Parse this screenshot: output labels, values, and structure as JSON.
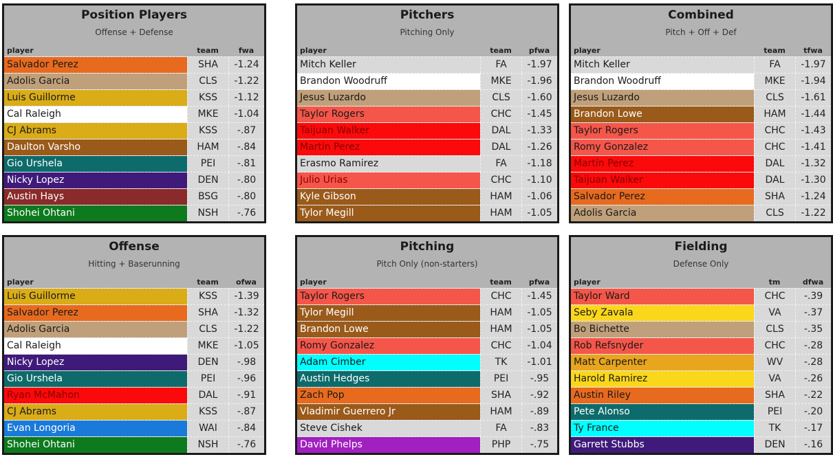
{
  "panels": [
    {
      "title": "Position Players",
      "subtitle": "Offense + Defense",
      "col_player": "player",
      "col_team": "team",
      "col_stat": "fwa",
      "rows": [
        {
          "player": "Salvador Perez",
          "team": "SHA",
          "value": "-1.24",
          "bg": "#e86a1e",
          "fg": "#1a1a1a"
        },
        {
          "player": "Adolis Garcia",
          "team": "CLS",
          "value": "-1.22",
          "bg": "#c0a07a",
          "fg": "#1a1a1a"
        },
        {
          "player": "Luis Guillorme",
          "team": "KSS",
          "value": "-1.12",
          "bg": "#d9ac18",
          "fg": "#1a1a1a"
        },
        {
          "player": "Cal Raleigh",
          "team": "MKE",
          "value": "-1.04",
          "bg": "#ffffff",
          "fg": "#1a1a1a"
        },
        {
          "player": "CJ Abrams",
          "team": "KSS",
          "value": "-.87",
          "bg": "#d9ac18",
          "fg": "#1a1a1a"
        },
        {
          "player": "Daulton Varsho",
          "team": "HAM",
          "value": "-.84",
          "bg": "#9a5a1a",
          "fg": "#ffffff"
        },
        {
          "player": "Gio Urshela",
          "team": "PEI",
          "value": "-.81",
          "bg": "#0e6b6b",
          "fg": "#ffffff"
        },
        {
          "player": "Nicky Lopez",
          "team": "DEN",
          "value": "-.80",
          "bg": "#3f1a7a",
          "fg": "#ffffff"
        },
        {
          "player": "Austin Hays",
          "team": "BSG",
          "value": "-.80",
          "bg": "#8a2a2a",
          "fg": "#ffffff"
        },
        {
          "player": "Shohei Ohtani",
          "team": "NSH",
          "value": "-.76",
          "bg": "#0d7a1e",
          "fg": "#ffffff"
        }
      ]
    },
    {
      "title": "Pitchers",
      "subtitle": "Pitching Only",
      "col_player": "player",
      "col_team": "team",
      "col_stat": "pfwa",
      "rows": [
        {
          "player": "Mitch Keller",
          "team": "FA",
          "value": "-1.97",
          "bg": "#d9d9d9",
          "fg": "#1a1a1a"
        },
        {
          "player": "Brandon Woodruff",
          "team": "MKE",
          "value": "-1.96",
          "bg": "#ffffff",
          "fg": "#1a1a1a"
        },
        {
          "player": "Jesus Luzardo",
          "team": "CLS",
          "value": "-1.60",
          "bg": "#c0a07a",
          "fg": "#1a1a1a"
        },
        {
          "player": "Taylor Rogers",
          "team": "CHC",
          "value": "-1.45",
          "bg": "#f5564a",
          "fg": "#1a1a1a"
        },
        {
          "player": "Taijuan Walker",
          "team": "DAL",
          "value": "-1.33",
          "bg": "#fa0a0a",
          "fg": "#8a0000"
        },
        {
          "player": "Martin Perez",
          "team": "DAL",
          "value": "-1.26",
          "bg": "#fa0a0a",
          "fg": "#8a0000"
        },
        {
          "player": "Erasmo Ramirez",
          "team": "FA",
          "value": "-1.18",
          "bg": "#d9d9d9",
          "fg": "#1a1a1a"
        },
        {
          "player": "Julio Urias",
          "team": "CHC",
          "value": "-1.10",
          "bg": "#f5564a",
          "fg": "#8a0000"
        },
        {
          "player": "Kyle Gibson",
          "team": "HAM",
          "value": "-1.06",
          "bg": "#9a5a1a",
          "fg": "#ffffff"
        },
        {
          "player": "Tylor Megill",
          "team": "HAM",
          "value": "-1.05",
          "bg": "#9a5a1a",
          "fg": "#ffffff"
        }
      ]
    },
    {
      "title": "Combined",
      "subtitle": "Pitch + Off + Def",
      "col_player": "player",
      "col_team": "team",
      "col_stat": "tfwa",
      "rows": [
        {
          "player": "Mitch Keller",
          "team": "FA",
          "value": "-1.97",
          "bg": "#d9d9d9",
          "fg": "#1a1a1a"
        },
        {
          "player": "Brandon Woodruff",
          "team": "MKE",
          "value": "-1.94",
          "bg": "#ffffff",
          "fg": "#1a1a1a"
        },
        {
          "player": "Jesus Luzardo",
          "team": "CLS",
          "value": "-1.61",
          "bg": "#c0a07a",
          "fg": "#1a1a1a"
        },
        {
          "player": "Brandon Lowe",
          "team": "HAM",
          "value": "-1.44",
          "bg": "#9a5a1a",
          "fg": "#ffffff"
        },
        {
          "player": "Taylor Rogers",
          "team": "CHC",
          "value": "-1.43",
          "bg": "#f5564a",
          "fg": "#1a1a1a"
        },
        {
          "player": "Romy Gonzalez",
          "team": "CHC",
          "value": "-1.41",
          "bg": "#f5564a",
          "fg": "#1a1a1a"
        },
        {
          "player": "Martin Perez",
          "team": "DAL",
          "value": "-1.32",
          "bg": "#fa0a0a",
          "fg": "#8a0000"
        },
        {
          "player": "Taijuan Walker",
          "team": "DAL",
          "value": "-1.30",
          "bg": "#fa0a0a",
          "fg": "#8a0000"
        },
        {
          "player": "Salvador Perez",
          "team": "SHA",
          "value": "-1.24",
          "bg": "#e86a1e",
          "fg": "#1a1a1a"
        },
        {
          "player": "Adolis Garcia",
          "team": "CLS",
          "value": "-1.22",
          "bg": "#c0a07a",
          "fg": "#1a1a1a"
        }
      ]
    },
    {
      "title": "Offense",
      "subtitle": "Hitting + Baserunning",
      "col_player": "player",
      "col_team": "team",
      "col_stat": "ofwa",
      "rows": [
        {
          "player": "Luis Guillorme",
          "team": "KSS",
          "value": "-1.39",
          "bg": "#d9ac18",
          "fg": "#1a1a1a"
        },
        {
          "player": "Salvador Perez",
          "team": "SHA",
          "value": "-1.32",
          "bg": "#e86a1e",
          "fg": "#1a1a1a"
        },
        {
          "player": "Adolis Garcia",
          "team": "CLS",
          "value": "-1.22",
          "bg": "#c0a07a",
          "fg": "#1a1a1a"
        },
        {
          "player": "Cal Raleigh",
          "team": "MKE",
          "value": "-1.05",
          "bg": "#ffffff",
          "fg": "#1a1a1a"
        },
        {
          "player": "Nicky Lopez",
          "team": "DEN",
          "value": "-.98",
          "bg": "#3f1a7a",
          "fg": "#ffffff"
        },
        {
          "player": "Gio Urshela",
          "team": "PEI",
          "value": "-.96",
          "bg": "#0e6b6b",
          "fg": "#ffffff"
        },
        {
          "player": "Ryan McMahon",
          "team": "DAL",
          "value": "-.91",
          "bg": "#fa0a0a",
          "fg": "#8a0000"
        },
        {
          "player": "CJ Abrams",
          "team": "KSS",
          "value": "-.87",
          "bg": "#d9ac18",
          "fg": "#1a1a1a"
        },
        {
          "player": "Evan Longoria",
          "team": "WAI",
          "value": "-.84",
          "bg": "#1a7ad9",
          "fg": "#ffffff"
        },
        {
          "player": "Shohei Ohtani",
          "team": "NSH",
          "value": "-.76",
          "bg": "#0d7a1e",
          "fg": "#ffffff"
        }
      ]
    },
    {
      "title": "Pitching",
      "subtitle": "Pitch Only (non-starters)",
      "col_player": "player",
      "col_team": "team",
      "col_stat": "pfwa",
      "rows": [
        {
          "player": "Taylor Rogers",
          "team": "CHC",
          "value": "-1.45",
          "bg": "#f5564a",
          "fg": "#1a1a1a"
        },
        {
          "player": "Tylor Megill",
          "team": "HAM",
          "value": "-1.05",
          "bg": "#9a5a1a",
          "fg": "#ffffff"
        },
        {
          "player": "Brandon Lowe",
          "team": "HAM",
          "value": "-1.05",
          "bg": "#9a5a1a",
          "fg": "#ffffff"
        },
        {
          "player": "Romy Gonzalez",
          "team": "CHC",
          "value": "-1.04",
          "bg": "#f5564a",
          "fg": "#1a1a1a"
        },
        {
          "player": "Adam Cimber",
          "team": "TK",
          "value": "-1.01",
          "bg": "#00ffff",
          "fg": "#1a1a1a"
        },
        {
          "player": "Austin Hedges",
          "team": "PEI",
          "value": "-.95",
          "bg": "#0e6b6b",
          "fg": "#ffffff"
        },
        {
          "player": "Zach Pop",
          "team": "SHA",
          "value": "-.92",
          "bg": "#e86a1e",
          "fg": "#1a1a1a"
        },
        {
          "player": "Vladimir Guerrero Jr",
          "team": "HAM",
          "value": "-.89",
          "bg": "#9a5a1a",
          "fg": "#ffffff"
        },
        {
          "player": "Steve Cishek",
          "team": "FA",
          "value": "-.83",
          "bg": "#d9d9d9",
          "fg": "#1a1a1a"
        },
        {
          "player": "David Phelps",
          "team": "PHP",
          "value": "-.75",
          "bg": "#a020c0",
          "fg": "#ffffff"
        }
      ]
    },
    {
      "title": "Fielding",
      "subtitle": "Defense Only",
      "col_player": "player",
      "col_team": "tm",
      "col_stat": "dfwa",
      "rows": [
        {
          "player": "Taylor Ward",
          "team": "CHC",
          "value": "-.39",
          "bg": "#f5564a",
          "fg": "#1a1a1a"
        },
        {
          "player": "Seby Zavala",
          "team": "VA",
          "value": "-.37",
          "bg": "#fad71a",
          "fg": "#1a1a1a"
        },
        {
          "player": "Bo Bichette",
          "team": "CLS",
          "value": "-.35",
          "bg": "#c0a07a",
          "fg": "#1a1a1a"
        },
        {
          "player": "Rob Refsnyder",
          "team": "CHC",
          "value": "-.28",
          "bg": "#f5564a",
          "fg": "#1a1a1a"
        },
        {
          "player": "Matt Carpenter",
          "team": "WV",
          "value": "-.28",
          "bg": "#e8a51e",
          "fg": "#1a1a1a"
        },
        {
          "player": "Harold Ramirez",
          "team": "VA",
          "value": "-.26",
          "bg": "#fad71a",
          "fg": "#1a1a1a"
        },
        {
          "player": "Austin Riley",
          "team": "SHA",
          "value": "-.22",
          "bg": "#e86a1e",
          "fg": "#1a1a1a"
        },
        {
          "player": "Pete Alonso",
          "team": "PEI",
          "value": "-.20",
          "bg": "#0e6b6b",
          "fg": "#ffffff"
        },
        {
          "player": "Ty France",
          "team": "TK",
          "value": "-.17",
          "bg": "#00ffff",
          "fg": "#1a1a1a"
        },
        {
          "player": "Garrett Stubbs",
          "team": "DEN",
          "value": "-.16",
          "bg": "#3f1a7a",
          "fg": "#ffffff"
        }
      ]
    }
  ]
}
